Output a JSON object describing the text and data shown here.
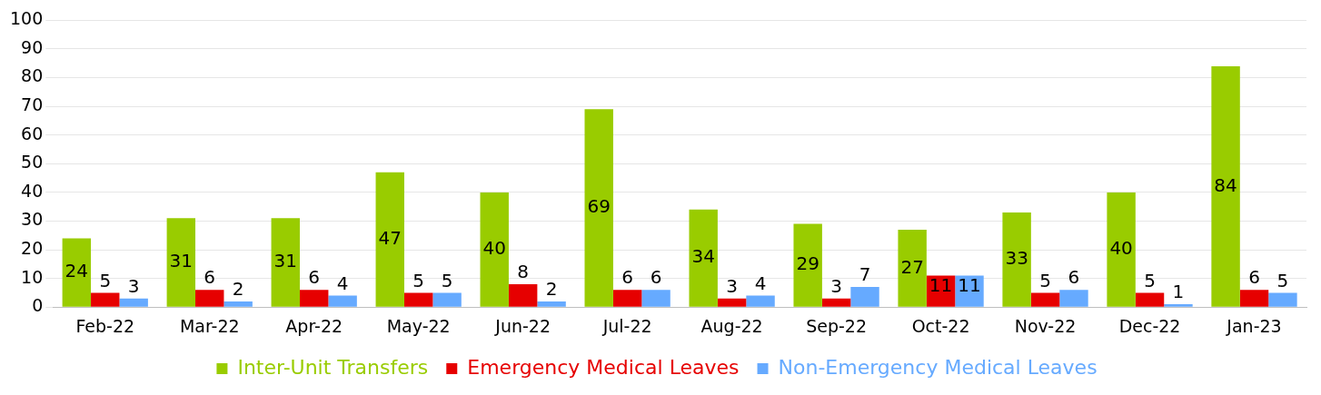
{
  "chart_data": {
    "type": "bar",
    "categories": [
      "Feb-22",
      "Mar-22",
      "Apr-22",
      "May-22",
      "Jun-22",
      "Jul-22",
      "Aug-22",
      "Sep-22",
      "Oct-22",
      "Nov-22",
      "Dec-22",
      "Jan-23"
    ],
    "series": [
      {
        "name": "Inter-Unit Transfers",
        "color": "#99cc00",
        "values": [
          24,
          31,
          31,
          47,
          40,
          69,
          34,
          29,
          27,
          33,
          40,
          84
        ]
      },
      {
        "name": "Emergency Medical Leaves",
        "color": "#e60000",
        "values": [
          5,
          6,
          6,
          5,
          8,
          6,
          3,
          3,
          11,
          5,
          5,
          6
        ]
      },
      {
        "name": "Non-Emergency Medical Leaves",
        "color": "#66aaff",
        "values": [
          3,
          2,
          4,
          5,
          2,
          6,
          4,
          7,
          11,
          6,
          1,
          5
        ]
      }
    ],
    "ylim": [
      0,
      100
    ],
    "yticks": [
      0,
      10,
      20,
      30,
      40,
      50,
      60,
      70,
      80,
      90,
      100
    ],
    "grid": "y",
    "legend": "bottom",
    "data_labels": true
  }
}
